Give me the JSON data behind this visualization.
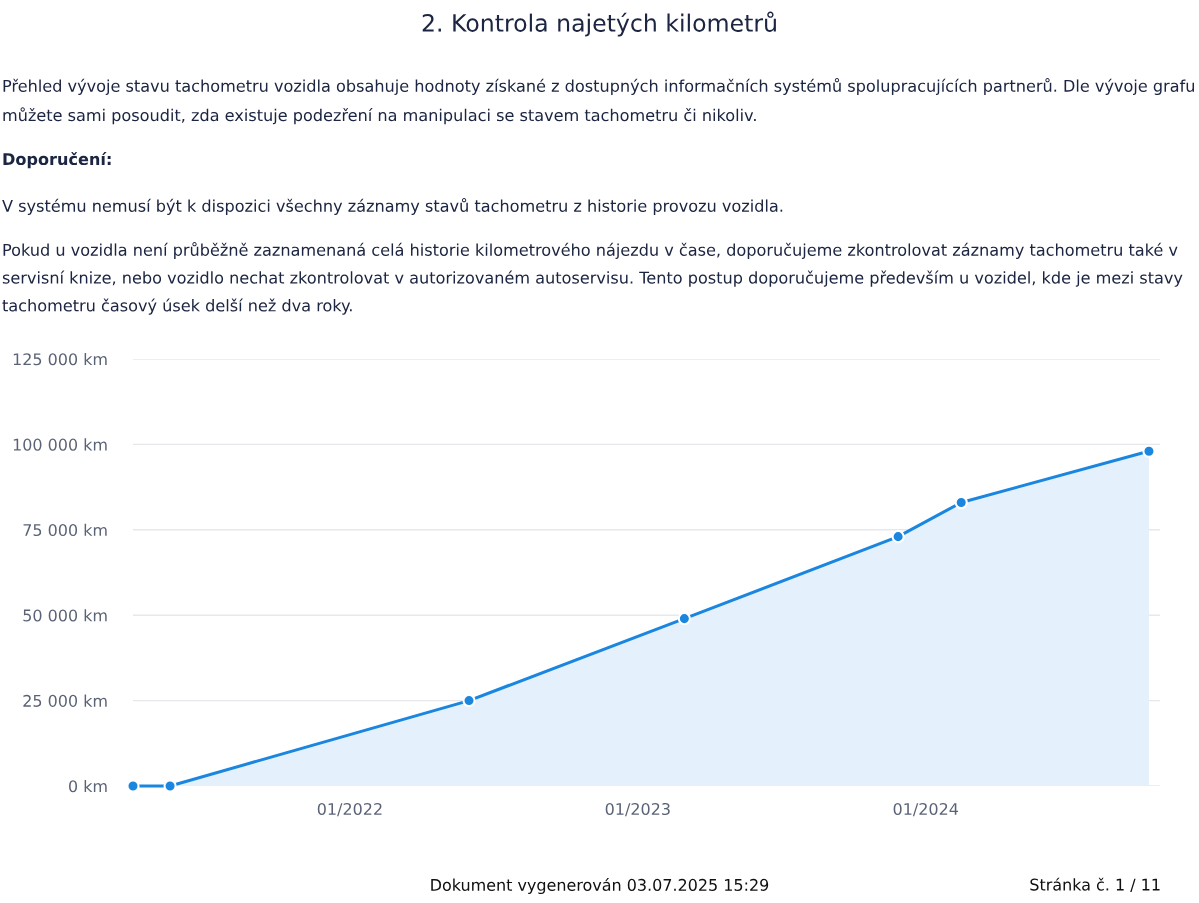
{
  "chart_data": {
    "type": "area",
    "title": "2. Kontrola najetých kilometrů",
    "annotations": [
      "Přehled vývoje stavu tachometru vozidla obsahuje hodnoty získané z dostupných informačních systémů spolupracujících partnerů. Dle vývoje grafu můžete sami posoudit, zda existuje podezření na manipulaci se stavem tachometru či nikoliv.",
      "Doporučení:",
      "V systému nemusí být k dispozici všechny záznamy stavů tachometru z historie provozu vozidla.",
      "Pokud u vozidla není průběžně zaznamenaná celá historie kilometrového nájezdu v čase, doporučujeme zkontrolovat záznamy tachometru také v servisní knize, nebo vozidlo nechat zkontrolovat v autorizovaném autoservisu. Tento postup doporučujeme především u vozidel, kde je mezi stavy tachometru časový úsek delší než dva roky.",
      "Dokument vygenerován 03.07.2025 15:29",
      "Stránka č. 1 / 11"
    ],
    "x": [
      "2021-04-01",
      "2021-05-18",
      "2022-06-01",
      "2023-03-01",
      "2023-11-27",
      "2024-02-15",
      "2024-10-10"
    ],
    "series": [
      {
        "color": "#1a86e0",
        "values": [
          0,
          0,
          25000,
          49000,
          73000,
          83000,
          98000
        ]
      }
    ],
    "xlim": [
      "2021-04-01",
      "2024-10-24"
    ],
    "xticks": [
      {
        "value": "2022-01-01",
        "label": "01/2022"
      },
      {
        "value": "2023-01-01",
        "label": "01/2023"
      },
      {
        "value": "2024-01-01",
        "label": "01/2024"
      }
    ],
    "ylim": [
      0,
      125000
    ],
    "yticks": [
      {
        "value": 0,
        "label": "0 km"
      },
      {
        "value": 25000,
        "label": "25 000 km"
      },
      {
        "value": 50000,
        "label": "50 000 km"
      },
      {
        "value": 75000,
        "label": "75 000 km"
      },
      {
        "value": 100000,
        "label": "100 000 km"
      },
      {
        "value": 125000,
        "label": "125 000 km"
      }
    ],
    "grid": "y",
    "marker": "circle",
    "line_style": "solid",
    "legend": false
  }
}
